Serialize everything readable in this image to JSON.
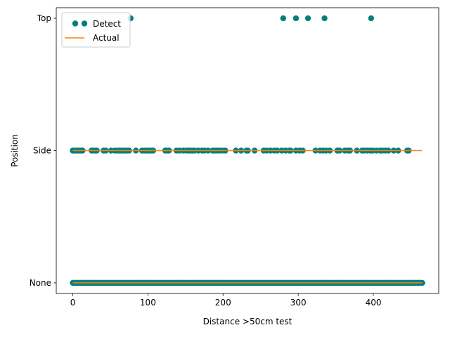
{
  "chart_data": {
    "type": "scatter",
    "xlabel": "Distance >50cm test",
    "ylabel": "Position",
    "xlim": [
      -22,
      487
    ],
    "ylim": [
      -0.08,
      2.08
    ],
    "x_ticks": [
      0,
      100,
      200,
      300,
      400
    ],
    "y_categories": [
      "None",
      "Side",
      "Top"
    ],
    "grid": false,
    "legend_placement": "top-left",
    "series": [
      {
        "name": "Detect",
        "kind": "points",
        "color": "#008080",
        "top_x": [
          77,
          280,
          297,
          313,
          335,
          397
        ],
        "side_x": [
          0,
          2,
          4,
          6,
          8,
          10,
          12,
          13,
          25,
          27,
          30,
          32,
          41,
          44,
          51,
          56,
          59,
          62,
          64,
          67,
          70,
          72,
          75,
          84,
          92,
          95,
          97,
          100,
          102,
          105,
          107,
          123,
          125,
          128,
          138,
          142,
          147,
          151,
          154,
          156,
          159,
          162,
          167,
          172,
          175,
          180,
          186,
          189,
          192,
          195,
          199,
          203,
          217,
          224,
          231,
          233,
          242,
          254,
          258,
          263,
          268,
          272,
          278,
          283,
          288,
          290,
          297,
          302,
          306,
          323,
          329,
          333,
          337,
          342,
          352,
          355,
          362,
          366,
          369,
          378,
          385,
          388,
          392,
          396,
          399,
          404,
          409,
          412,
          416,
          420,
          427,
          433,
          445,
          447
        ],
        "none_x_range": [
          0,
          465
        ],
        "none_x_step": 1
      },
      {
        "name": "Actual",
        "kind": "line",
        "color": "#ff7f0e",
        "segments": [
          {
            "x": [
              0,
              465
            ],
            "y": [
              "None",
              "None"
            ]
          },
          {
            "x": [
              0,
              465
            ],
            "y": [
              "Side",
              "Side"
            ]
          }
        ]
      }
    ]
  }
}
